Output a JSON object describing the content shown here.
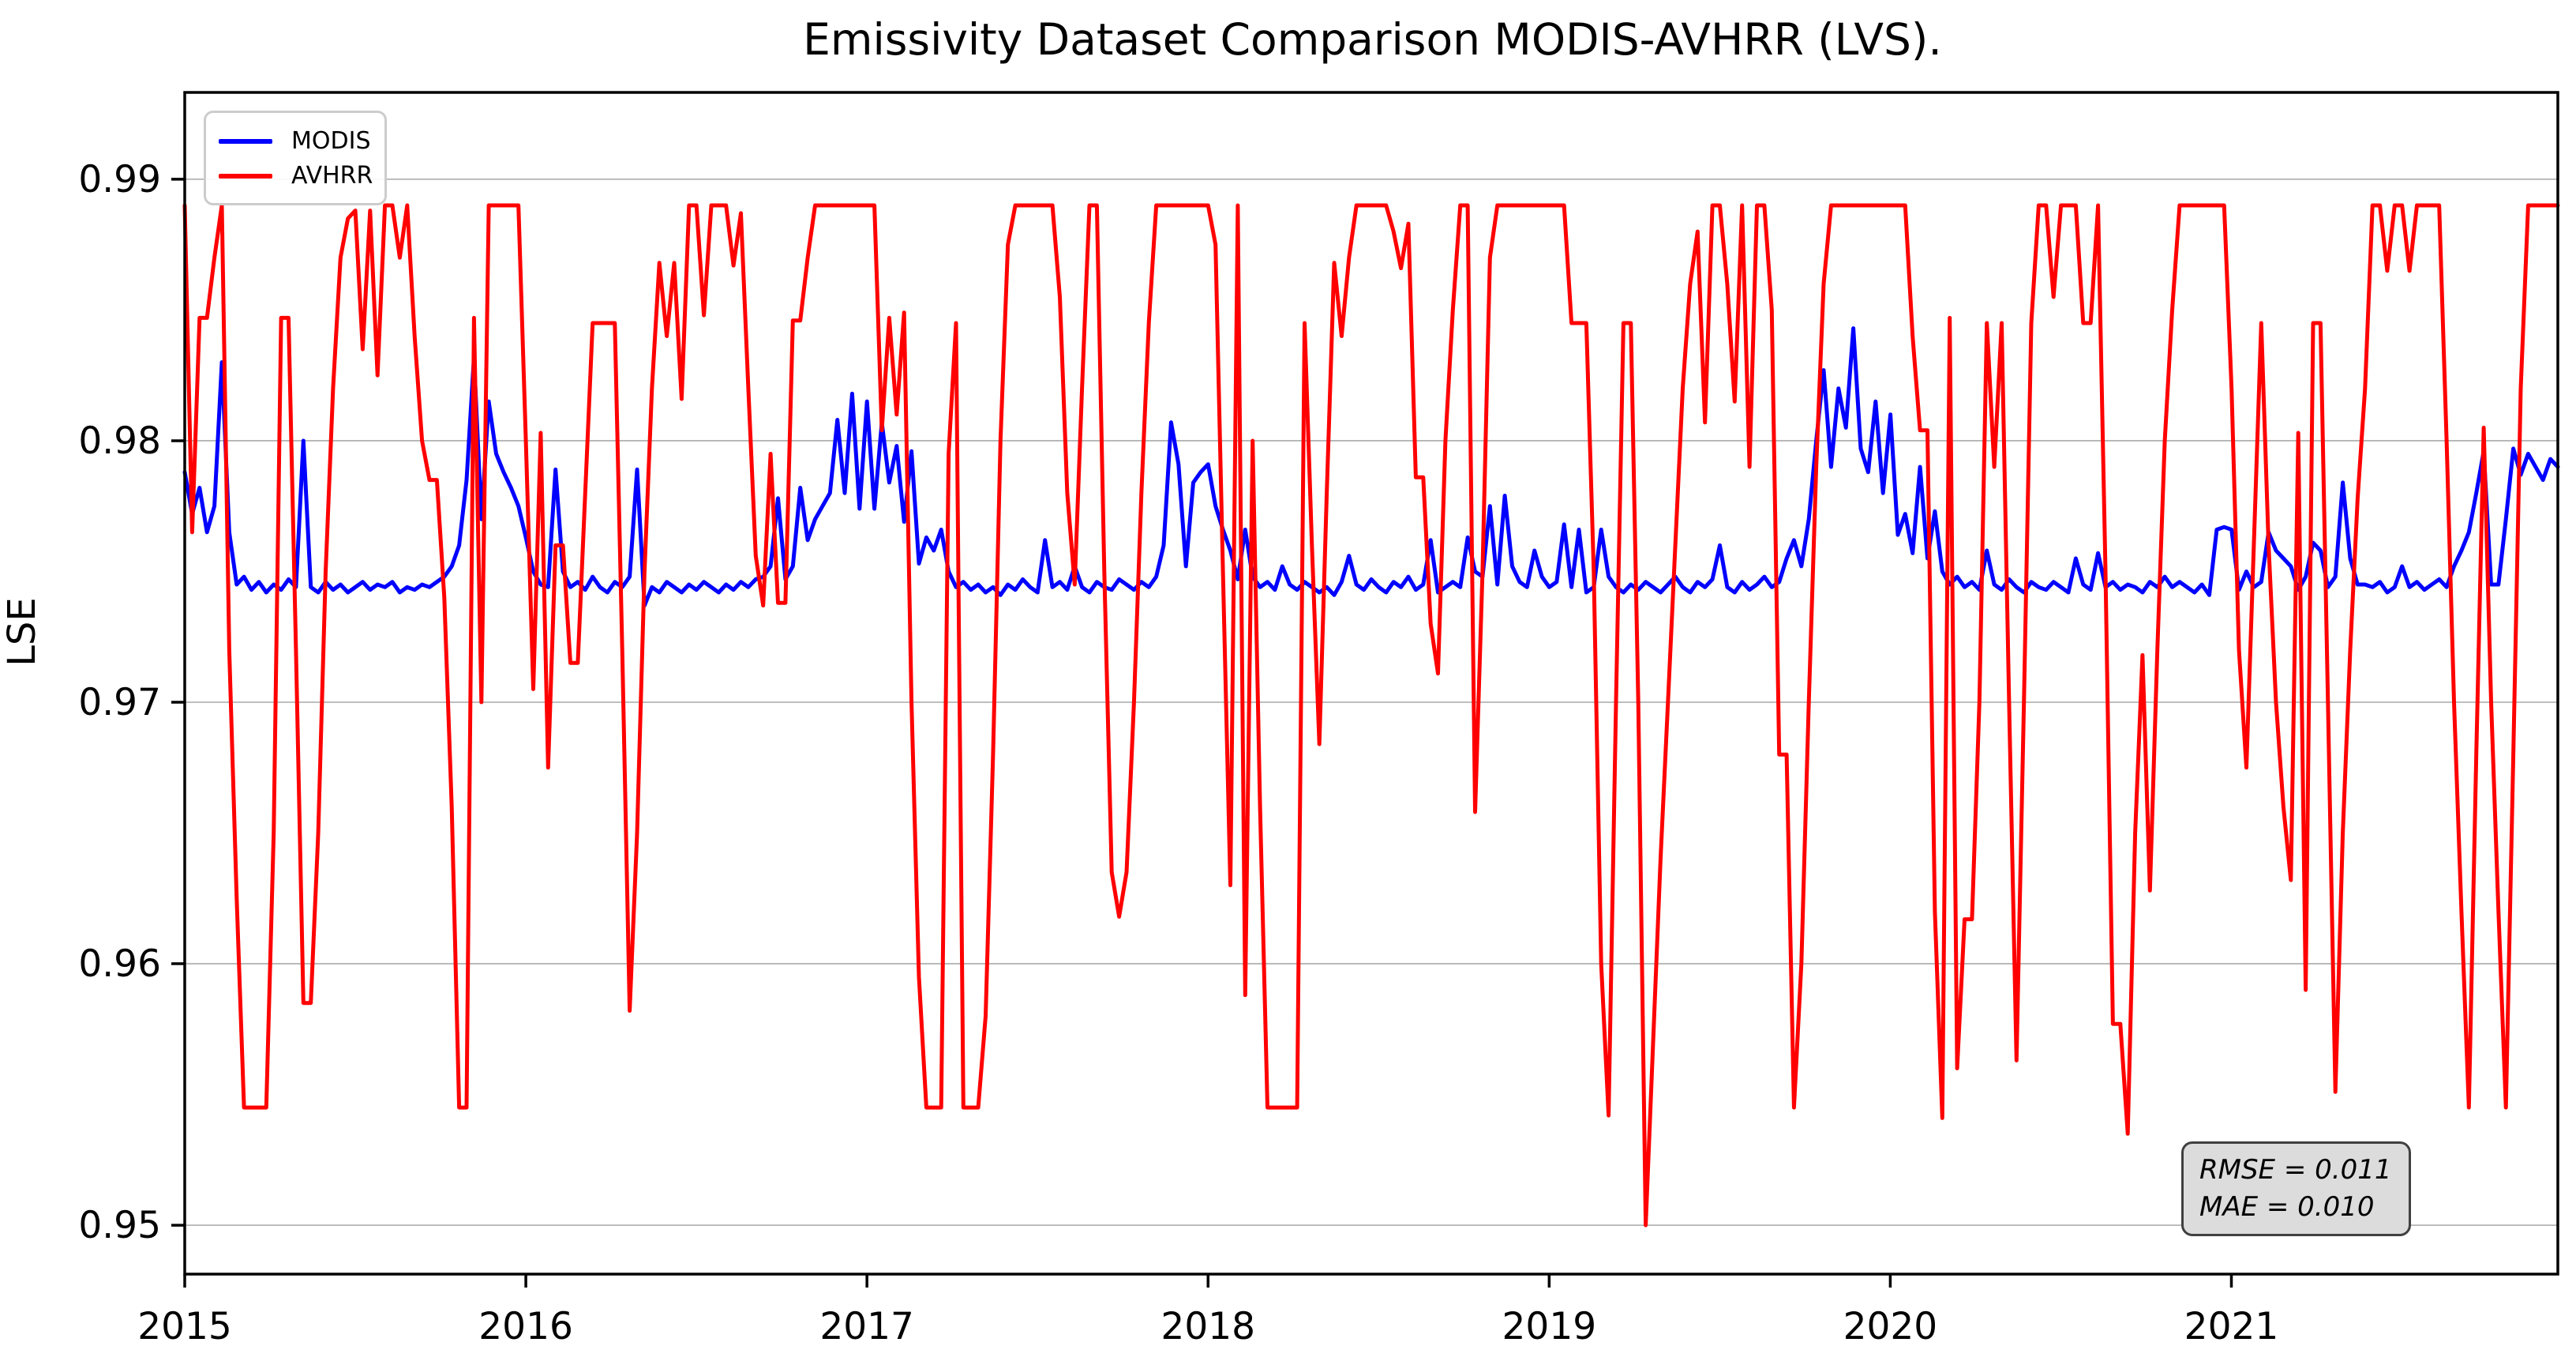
{
  "chart_data": {
    "type": "line",
    "title": "Emissivity Dataset Comparison MODIS-AVHRR (LVS).",
    "xlabel": "",
    "ylabel": "LSE",
    "x_start_year": 2015.0,
    "x_end_year": 2021.957,
    "points_per_year": 46,
    "x_ticks": [
      "2015",
      "2016",
      "2017",
      "2018",
      "2019",
      "2020",
      "2021"
    ],
    "x_tick_years": [
      2015,
      2016,
      2017,
      2018,
      2019,
      2020,
      2021
    ],
    "y_ticks": [
      "0.99",
      "0.98",
      "0.97",
      "0.96",
      "0.95"
    ],
    "y_tick_values": [
      0.99,
      0.98,
      0.97,
      0.96,
      0.95
    ],
    "ylim": [
      0.94813,
      0.99332
    ],
    "grid": "horizontal",
    "legend_position": "upper-left",
    "series": [
      {
        "name": "MODIS",
        "color": "#0000ff",
        "values": [
          0.9788,
          0.9772,
          0.9782,
          0.9765,
          0.9775,
          0.983,
          0.9765,
          0.9745,
          0.9748,
          0.9743,
          0.9746,
          0.9742,
          0.9745,
          0.9743,
          0.9747,
          0.9744,
          0.98,
          0.9744,
          0.9742,
          0.9746,
          0.9743,
          0.9745,
          0.9742,
          0.9744,
          0.9746,
          0.9743,
          0.9745,
          0.9744,
          0.9746,
          0.9742,
          0.9744,
          0.9743,
          0.9745,
          0.9744,
          0.9746,
          0.9748,
          0.9752,
          0.976,
          0.9785,
          0.9832,
          0.977,
          0.9815,
          0.9795,
          0.9788,
          0.9782,
          0.9775,
          0.9763,
          0.975,
          0.9745,
          0.9744,
          0.9789,
          0.975,
          0.9744,
          0.9746,
          0.9743,
          0.9748,
          0.9744,
          0.9742,
          0.9746,
          0.9744,
          0.9748,
          0.9789,
          0.9737,
          0.9744,
          0.9742,
          0.9746,
          0.9744,
          0.9742,
          0.9745,
          0.9743,
          0.9746,
          0.9744,
          0.9742,
          0.9745,
          0.9743,
          0.9746,
          0.9744,
          0.9747,
          0.9748,
          0.9752,
          0.9778,
          0.9747,
          0.9752,
          0.9782,
          0.9762,
          0.977,
          0.9775,
          0.978,
          0.9808,
          0.978,
          0.9818,
          0.9774,
          0.9815,
          0.9774,
          0.9807,
          0.9784,
          0.9798,
          0.9769,
          0.9796,
          0.9753,
          0.9763,
          0.9758,
          0.9766,
          0.975,
          0.9744,
          0.9746,
          0.9743,
          0.9745,
          0.9742,
          0.9744,
          0.9741,
          0.9745,
          0.9743,
          0.9747,
          0.9744,
          0.9742,
          0.9762,
          0.9744,
          0.9746,
          0.9743,
          0.9752,
          0.9744,
          0.9742,
          0.9746,
          0.9744,
          0.9743,
          0.9747,
          0.9745,
          0.9743,
          0.9746,
          0.9744,
          0.9748,
          0.976,
          0.9807,
          0.9791,
          0.9752,
          0.9784,
          0.9788,
          0.9791,
          0.9775,
          0.9766,
          0.9758,
          0.9747,
          0.9766,
          0.9748,
          0.9744,
          0.9746,
          0.9743,
          0.9752,
          0.9745,
          0.9743,
          0.9746,
          0.9744,
          0.9742,
          0.9744,
          0.9741,
          0.9746,
          0.9756,
          0.9745,
          0.9743,
          0.9747,
          0.9744,
          0.9742,
          0.9746,
          0.9744,
          0.9748,
          0.9743,
          0.9745,
          0.9762,
          0.9742,
          0.9744,
          0.9746,
          0.9744,
          0.9763,
          0.975,
          0.9748,
          0.9775,
          0.9745,
          0.9779,
          0.9752,
          0.9746,
          0.9744,
          0.9758,
          0.9748,
          0.9744,
          0.9746,
          0.9768,
          0.9744,
          0.9766,
          0.9742,
          0.9744,
          0.9766,
          0.9748,
          0.9744,
          0.9742,
          0.9745,
          0.9743,
          0.9746,
          0.9744,
          0.9742,
          0.9745,
          0.9748,
          0.9744,
          0.9742,
          0.9746,
          0.9744,
          0.9747,
          0.976,
          0.9744,
          0.9742,
          0.9746,
          0.9743,
          0.9745,
          0.9748,
          0.9744,
          0.9746,
          0.9755,
          0.9762,
          0.9752,
          0.977,
          0.98,
          0.9827,
          0.979,
          0.982,
          0.9805,
          0.9843,
          0.9797,
          0.9788,
          0.9815,
          0.978,
          0.981,
          0.9764,
          0.9772,
          0.9757,
          0.979,
          0.9755,
          0.9773,
          0.975,
          0.9745,
          0.9748,
          0.9744,
          0.9746,
          0.9743,
          0.9758,
          0.9745,
          0.9743,
          0.9747,
          0.9744,
          0.9742,
          0.9746,
          0.9744,
          0.9743,
          0.9746,
          0.9744,
          0.9742,
          0.9755,
          0.9745,
          0.9743,
          0.9757,
          0.9744,
          0.9746,
          0.9743,
          0.9745,
          0.9744,
          0.9742,
          0.9746,
          0.9744,
          0.9748,
          0.9744,
          0.9746,
          0.9744,
          0.9742,
          0.9745,
          0.9741,
          0.9766,
          0.9767,
          0.9766,
          0.9743,
          0.975,
          0.9744,
          0.9746,
          0.9765,
          0.9758,
          0.9755,
          0.9752,
          0.9743,
          0.9748,
          0.9761,
          0.9758,
          0.9744,
          0.9748,
          0.9784,
          0.9755,
          0.9745,
          0.9745,
          0.9744,
          0.9746,
          0.9742,
          0.9744,
          0.9752,
          0.9744,
          0.9746,
          0.9743,
          0.9745,
          0.9747,
          0.9744,
          0.9752,
          0.9758,
          0.9765,
          0.978,
          0.9796,
          0.9745,
          0.9745,
          0.977,
          0.9797,
          0.9787,
          0.9795,
          0.979,
          0.9785,
          0.9793,
          0.979
        ]
      },
      {
        "name": "AVHRR",
        "color": "#ff0000",
        "values": [
          0.989,
          0.9765,
          0.9847,
          0.9847,
          0.987,
          0.989,
          0.972,
          0.9625,
          0.9545,
          0.9545,
          0.9545,
          0.9545,
          0.965,
          0.9847,
          0.9847,
          0.972,
          0.9585,
          0.9585,
          0.965,
          0.975,
          0.982,
          0.987,
          0.9885,
          0.9888,
          0.9835,
          0.9888,
          0.9825,
          0.989,
          0.989,
          0.987,
          0.989,
          0.984,
          0.98,
          0.9785,
          0.9785,
          0.974,
          0.966,
          0.9545,
          0.9545,
          0.9847,
          0.97,
          0.989,
          0.989,
          0.989,
          0.989,
          0.989,
          0.98,
          0.9705,
          0.9803,
          0.9675,
          0.976,
          0.976,
          0.9715,
          0.9715,
          0.978,
          0.9845,
          0.9845,
          0.9845,
          0.9845,
          0.972,
          0.9582,
          0.965,
          0.975,
          0.982,
          0.9868,
          0.984,
          0.9868,
          0.9816,
          0.989,
          0.989,
          0.9848,
          0.989,
          0.989,
          0.989,
          0.9867,
          0.9887,
          0.982,
          0.9756,
          0.9737,
          0.9795,
          0.9738,
          0.9738,
          0.9846,
          0.9846,
          0.987,
          0.989,
          0.989,
          0.989,
          0.989,
          0.989,
          0.989,
          0.989,
          0.989,
          0.989,
          0.9804,
          0.9847,
          0.981,
          0.9849,
          0.97,
          0.9595,
          0.9545,
          0.9545,
          0.9545,
          0.9795,
          0.9845,
          0.9545,
          0.9545,
          0.9545,
          0.958,
          0.968,
          0.98,
          0.9875,
          0.989,
          0.989,
          0.989,
          0.989,
          0.989,
          0.989,
          0.9855,
          0.978,
          0.9745,
          0.982,
          0.989,
          0.989,
          0.975,
          0.9635,
          0.9618,
          0.9635,
          0.97,
          0.978,
          0.9845,
          0.989,
          0.989,
          0.989,
          0.989,
          0.989,
          0.989,
          0.989,
          0.989,
          0.9875,
          0.975,
          0.963,
          0.989,
          0.9588,
          0.98,
          0.966,
          0.9545,
          0.9545,
          0.9545,
          0.9545,
          0.9545,
          0.9845,
          0.976,
          0.9684,
          0.978,
          0.9868,
          0.984,
          0.987,
          0.989,
          0.989,
          0.989,
          0.989,
          0.989,
          0.988,
          0.9866,
          0.9883,
          0.9786,
          0.9786,
          0.973,
          0.9711,
          0.98,
          0.985,
          0.989,
          0.989,
          0.9658,
          0.975,
          0.987,
          0.989,
          0.989,
          0.989,
          0.989,
          0.989,
          0.989,
          0.989,
          0.989,
          0.989,
          0.989,
          0.9845,
          0.9845,
          0.9845,
          0.975,
          0.96,
          0.9542,
          0.97,
          0.9845,
          0.9845,
          0.97,
          0.95,
          0.957,
          0.964,
          0.97,
          0.976,
          0.982,
          0.986,
          0.988,
          0.9807,
          0.989,
          0.989,
          0.986,
          0.9815,
          0.989,
          0.979,
          0.989,
          0.989,
          0.985,
          0.968,
          0.968,
          0.9545,
          0.96,
          0.97,
          0.979,
          0.986,
          0.989,
          0.989,
          0.989,
          0.989,
          0.989,
          0.989,
          0.989,
          0.989,
          0.989,
          0.989,
          0.989,
          0.984,
          0.9804,
          0.9804,
          0.962,
          0.9541,
          0.9847,
          0.956,
          0.9617,
          0.9617,
          0.97,
          0.9845,
          0.979,
          0.9845,
          0.97,
          0.9563,
          0.97,
          0.9845,
          0.989,
          0.989,
          0.9855,
          0.989,
          0.989,
          0.989,
          0.9845,
          0.9845,
          0.989,
          0.975,
          0.9577,
          0.9577,
          0.9535,
          0.965,
          0.9718,
          0.9628,
          0.972,
          0.98,
          0.985,
          0.989,
          0.989,
          0.989,
          0.989,
          0.989,
          0.989,
          0.989,
          0.982,
          0.972,
          0.9675,
          0.976,
          0.9845,
          0.976,
          0.97,
          0.966,
          0.9632,
          0.9803,
          0.959,
          0.9845,
          0.9845,
          0.97,
          0.9551,
          0.965,
          0.972,
          0.9778,
          0.982,
          0.989,
          0.989,
          0.9865,
          0.989,
          0.989,
          0.9865,
          0.989,
          0.989,
          0.989,
          0.989,
          0.98,
          0.97,
          0.962,
          0.9545,
          0.968,
          0.9805,
          0.97,
          0.962,
          0.9545,
          0.968,
          0.982,
          0.989,
          0.989,
          0.989,
          0.989,
          0.989
        ]
      }
    ]
  },
  "annotation": {
    "line1": "RMSE = 0.011",
    "line2": "MAE = 0.010"
  },
  "colors": {
    "background": "#ffffff",
    "grid": "#b4b4b4",
    "spine": "#000000",
    "tick_label": "#000000",
    "modis_line": "#0000ff",
    "avhrr_line": "#ff0000",
    "annotation_bg": "#dcdcdc",
    "annotation_border": "#404040",
    "legend_border": "#cccccc"
  }
}
